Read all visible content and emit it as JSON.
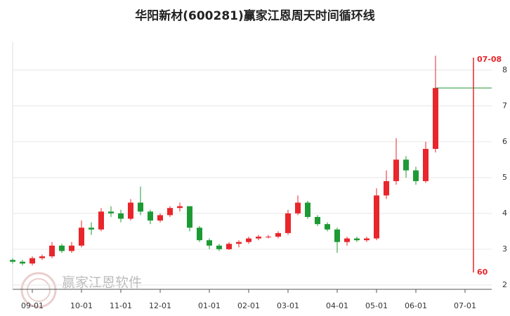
{
  "chart_data": {
    "type": "candlestick",
    "title": "华阳新材(600281)赢家江恩周天时间循环线",
    "categories": [
      null,
      null,
      "09-01",
      null,
      null,
      null,
      null,
      "10-01",
      null,
      null,
      null,
      "11-01",
      null,
      null,
      null,
      "12-01",
      null,
      null,
      null,
      null,
      "01-01",
      null,
      null,
      null,
      "02-01",
      null,
      null,
      null,
      "03-01",
      null,
      null,
      null,
      null,
      "04-01",
      null,
      null,
      null,
      "05-01",
      null,
      null,
      null,
      "06-01",
      null,
      null,
      null,
      null,
      "07-01",
      null,
      null
    ],
    "open": [
      2.7,
      2.65,
      2.6,
      2.75,
      2.8,
      3.1,
      2.95,
      3.1,
      3.6,
      3.55,
      4.05,
      4.0,
      3.85,
      4.3,
      4.05,
      3.8,
      3.95,
      4.15,
      4.2,
      3.6,
      3.25,
      3.1,
      3.0,
      3.15,
      3.2,
      3.3,
      3.35,
      3.35,
      3.45,
      4.0,
      4.3,
      3.9,
      3.7,
      3.55,
      3.2,
      3.3,
      3.25,
      3.3,
      4.5,
      4.9,
      5.5,
      5.2,
      4.9,
      5.8,
      null,
      null,
      null,
      null,
      null
    ],
    "high": [
      2.75,
      2.7,
      2.8,
      2.85,
      3.2,
      3.15,
      3.2,
      3.8,
      3.75,
      4.15,
      4.2,
      4.1,
      4.4,
      4.75,
      4.1,
      4.0,
      4.2,
      4.3,
      4.2,
      3.65,
      3.3,
      3.15,
      3.2,
      3.25,
      3.35,
      3.4,
      3.4,
      3.5,
      4.1,
      4.5,
      4.35,
      3.95,
      3.75,
      3.6,
      3.35,
      3.35,
      3.35,
      4.7,
      5.2,
      6.1,
      5.6,
      5.3,
      6.0,
      8.4,
      null,
      null,
      null,
      null,
      null
    ],
    "low": [
      2.6,
      2.55,
      2.55,
      2.7,
      2.75,
      2.9,
      2.9,
      3.05,
      3.4,
      3.5,
      3.9,
      3.75,
      3.8,
      3.95,
      3.7,
      3.75,
      3.9,
      4.05,
      3.5,
      3.2,
      3.0,
      2.95,
      2.98,
      3.05,
      3.15,
      3.25,
      3.3,
      3.3,
      3.4,
      3.95,
      3.85,
      3.65,
      3.5,
      2.9,
      3.1,
      3.2,
      3.2,
      3.25,
      4.4,
      4.8,
      5.0,
      4.8,
      4.85,
      5.7,
      null,
      null,
      null,
      null,
      null
    ],
    "close": [
      2.65,
      2.6,
      2.75,
      2.8,
      3.1,
      2.95,
      3.1,
      3.6,
      3.55,
      4.05,
      4.0,
      3.85,
      4.3,
      4.05,
      3.8,
      3.95,
      4.15,
      4.2,
      3.6,
      3.25,
      3.1,
      3.0,
      3.15,
      3.2,
      3.3,
      3.35,
      3.35,
      3.45,
      4.0,
      4.3,
      3.9,
      3.7,
      3.55,
      3.2,
      3.3,
      3.25,
      3.3,
      4.5,
      4.9,
      5.5,
      5.2,
      4.9,
      5.8,
      7.5,
      null,
      null,
      null,
      null,
      null
    ],
    "up_color": "#e8262b",
    "down_color": "#1e9a35",
    "ylim": [
      1.88,
      8.78
    ],
    "yticks": [
      2,
      3,
      4,
      5,
      6,
      7,
      8
    ],
    "grid": true,
    "cycle_line": {
      "top_label": "07-08",
      "bottom_label": "60",
      "color": "#e8262b"
    },
    "watermark": "赢家江恩软件"
  }
}
